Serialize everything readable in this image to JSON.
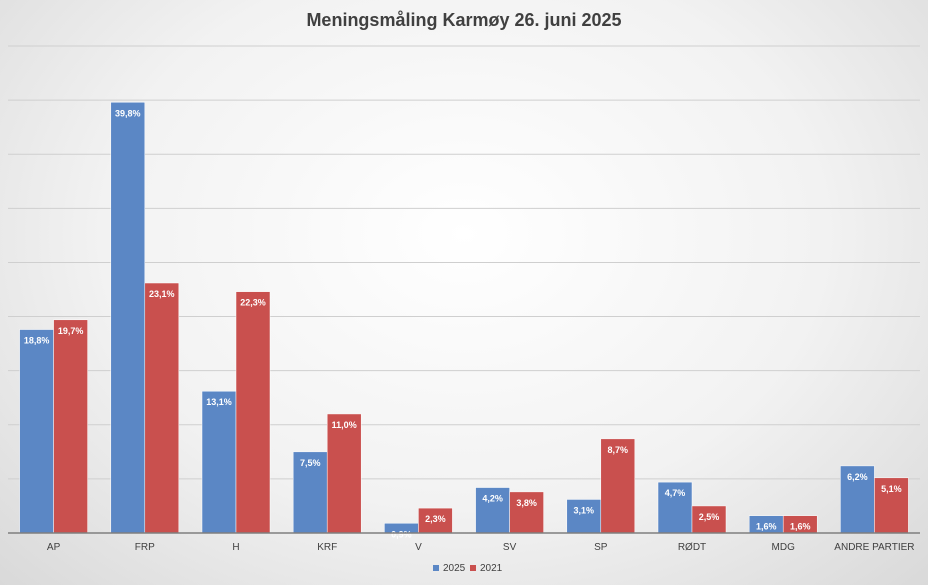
{
  "chart_data": {
    "type": "bar",
    "title": "Meningsmåling Karmøy 26. juni 2025",
    "categories": [
      "AP",
      "FRP",
      "H",
      "KRF",
      "V",
      "SV",
      "SP",
      "RØDT",
      "MDG",
      "ANDRE PARTIER"
    ],
    "series": [
      {
        "name": "2025",
        "color": "#5b87c5",
        "values": [
          18.8,
          39.8,
          13.1,
          7.5,
          0.9,
          4.2,
          3.1,
          4.7,
          1.6,
          6.2
        ],
        "labels": [
          "18,8%",
          "39,8%",
          "13,1%",
          "7,5%",
          "0,9%",
          "4,2%",
          "3,1%",
          "4,7%",
          "1,6%",
          "6,2%"
        ]
      },
      {
        "name": "2021",
        "color": "#c9504e",
        "values": [
          19.7,
          23.1,
          22.3,
          11.0,
          2.3,
          3.8,
          8.7,
          2.5,
          1.6,
          5.1
        ],
        "labels": [
          "19,7%",
          "23,1%",
          "22,3%",
          "11,0%",
          "2,3%",
          "3,8%",
          "8,7%",
          "2,5%",
          "1,6%",
          "5,1%"
        ]
      }
    ],
    "ylim": [
      0,
      45
    ],
    "gridlines": true,
    "y_axis_labels_shown": false,
    "legend_position": "bottom"
  }
}
